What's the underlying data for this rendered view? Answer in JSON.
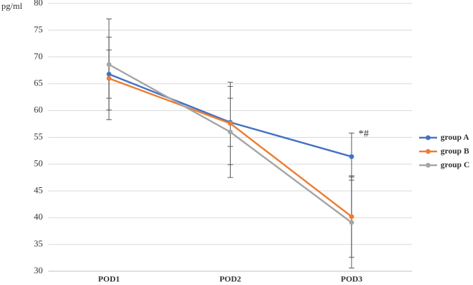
{
  "chart_data": {
    "type": "line",
    "y_label": "pg/ml",
    "categories": [
      "POD1",
      "POD2",
      "POD3"
    ],
    "series": [
      {
        "name": "group A",
        "color": "#4472c4",
        "values": [
          66.8,
          57.8,
          51.4
        ],
        "errors": [
          4.5,
          4.5,
          4.4
        ]
      },
      {
        "name": "group B",
        "color": "#ed7d31",
        "values": [
          66.0,
          57.6,
          40.2
        ],
        "errors": [
          7.7,
          7.7,
          7.6
        ]
      },
      {
        "name": "group C",
        "color": "#a5a5a5",
        "values": [
          68.6,
          56.0,
          39.1
        ],
        "errors": [
          8.5,
          8.5,
          8.5
        ]
      }
    ],
    "annotation": "*#",
    "ylim": [
      30,
      80
    ],
    "yticks": [
      30,
      35,
      40,
      45,
      50,
      55,
      60,
      65,
      70,
      75,
      80
    ],
    "grid": true,
    "legend": "right"
  }
}
